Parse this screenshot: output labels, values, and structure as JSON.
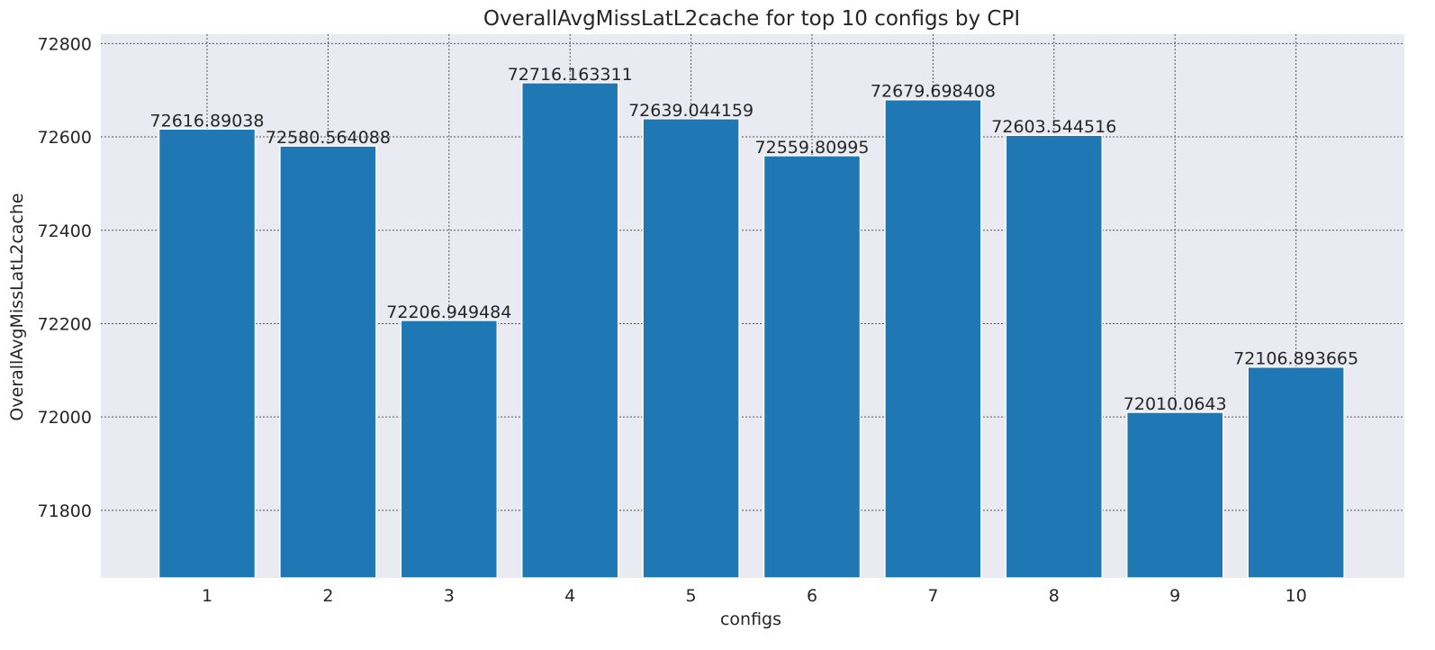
{
  "chart_data": {
    "type": "bar",
    "title": "OverallAvgMissLatL2cache for top 10 configs by CPI",
    "xlabel": "configs",
    "ylabel": "OverallAvgMissLatL2cache",
    "categories": [
      "1",
      "2",
      "3",
      "4",
      "5",
      "6",
      "7",
      "8",
      "9",
      "10"
    ],
    "values": [
      72616.89038,
      72580.564088,
      72206.949484,
      72716.163311,
      72639.044159,
      72559.80995,
      72679.698408,
      72603.544516,
      72010.0643,
      72106.893665
    ],
    "value_labels": [
      "72616.89038",
      "72580.564088",
      "72206.949484",
      "72716.163311",
      "72639.044159",
      "72559.80995",
      "72679.698408",
      "72603.544516",
      "72010.0643",
      "72106.893665"
    ],
    "yticks": [
      "71800",
      "72000",
      "72200",
      "72400",
      "72600",
      "72800"
    ],
    "ylim": [
      71655,
      72820
    ],
    "grid": true,
    "bar_color": "#1f77b4",
    "background_color": "#eaeaf2",
    "grid_color": "#555555"
  }
}
